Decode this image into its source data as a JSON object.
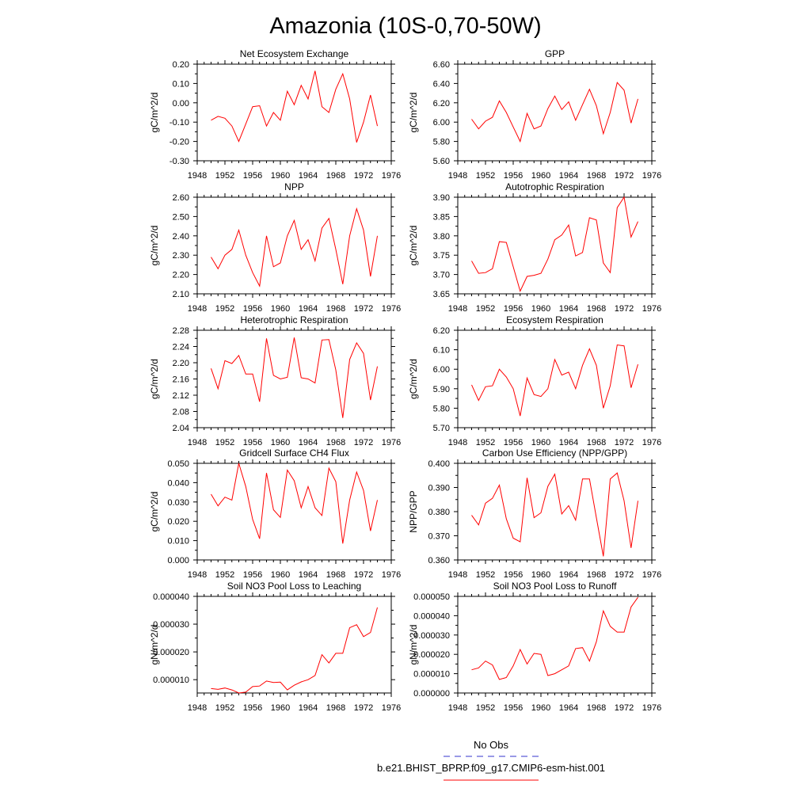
{
  "figure": {
    "title": "Amazonia (10S-0,70-50W)"
  },
  "legend": {
    "entries": [
      {
        "label": "No Obs",
        "color": "#3333cc",
        "dash": true
      },
      {
        "label": "b.e21.BHIST_BPRP.f09_g17.CMIP6-esm-hist.001",
        "color": "#ff0000",
        "dash": false
      }
    ]
  },
  "chart_data": [
    {
      "type": "line",
      "title": "Net Ecosystem Exchange",
      "ylabel": "gC/m^2/d",
      "xlabel": "",
      "xlim": [
        1948,
        1976
      ],
      "xticks": [
        "1948",
        "1952",
        "1956",
        "1960",
        "1964",
        "1968",
        "1972",
        "1976"
      ],
      "ylim": [
        -0.3,
        0.2
      ],
      "yticks": [
        "-0.30",
        "-0.20",
        "-0.10",
        "0.00",
        "0.10",
        "0.20"
      ],
      "x": [
        1950,
        1951,
        1952,
        1953,
        1954,
        1955,
        1956,
        1957,
        1958,
        1959,
        1960,
        1961,
        1962,
        1963,
        1964,
        1965,
        1966,
        1967,
        1968,
        1969,
        1970,
        1971,
        1972,
        1973,
        1974
      ],
      "series": [
        {
          "color": "#ff0000",
          "values": [
            -0.09,
            -0.07,
            -0.08,
            -0.12,
            -0.2,
            -0.11,
            -0.02,
            -0.015,
            -0.12,
            -0.05,
            -0.09,
            0.06,
            -0.01,
            0.09,
            0.02,
            0.165,
            -0.02,
            -0.05,
            0.07,
            0.15,
            0.02,
            -0.205,
            -0.1,
            0.04,
            -0.12
          ]
        }
      ]
    },
    {
      "type": "line",
      "title": "GPP",
      "ylabel": "gC/m^2/d",
      "xlabel": "",
      "xlim": [
        1948,
        1976
      ],
      "xticks": [
        "1948",
        "1952",
        "1956",
        "1960",
        "1964",
        "1968",
        "1972",
        "1976"
      ],
      "ylim": [
        5.6,
        6.6
      ],
      "yticks": [
        "5.60",
        "5.80",
        "6.00",
        "6.20",
        "6.40",
        "6.60"
      ],
      "x": [
        1950,
        1951,
        1952,
        1953,
        1954,
        1955,
        1956,
        1957,
        1958,
        1959,
        1960,
        1961,
        1962,
        1963,
        1964,
        1965,
        1966,
        1967,
        1968,
        1969,
        1970,
        1971,
        1972,
        1973,
        1974
      ],
      "series": [
        {
          "color": "#ff0000",
          "values": [
            6.03,
            5.93,
            6.01,
            6.05,
            6.22,
            6.1,
            5.95,
            5.8,
            6.09,
            5.93,
            5.96,
            6.14,
            6.27,
            6.13,
            6.21,
            6.02,
            6.18,
            6.34,
            6.17,
            5.88,
            6.1,
            6.41,
            6.33,
            5.99,
            6.24
          ]
        }
      ]
    },
    {
      "type": "line",
      "title": "NPP",
      "ylabel": "gC/m^2/d",
      "xlabel": "",
      "xlim": [
        1948,
        1976
      ],
      "xticks": [
        "1948",
        "1952",
        "1956",
        "1960",
        "1964",
        "1968",
        "1972",
        "1976"
      ],
      "ylim": [
        2.1,
        2.6
      ],
      "yticks": [
        "2.10",
        "2.20",
        "2.30",
        "2.40",
        "2.50",
        "2.60"
      ],
      "x": [
        1950,
        1951,
        1952,
        1953,
        1954,
        1955,
        1956,
        1957,
        1958,
        1959,
        1960,
        1961,
        1962,
        1963,
        1964,
        1965,
        1966,
        1967,
        1968,
        1969,
        1970,
        1971,
        1972,
        1973,
        1974
      ],
      "series": [
        {
          "color": "#ff0000",
          "values": [
            2.29,
            2.23,
            2.3,
            2.33,
            2.43,
            2.3,
            2.21,
            2.14,
            2.4,
            2.24,
            2.26,
            2.4,
            2.48,
            2.33,
            2.38,
            2.27,
            2.44,
            2.49,
            2.33,
            2.15,
            2.4,
            2.54,
            2.43,
            2.19,
            2.4
          ]
        }
      ]
    },
    {
      "type": "line",
      "title": "Autotrophic Respiration",
      "ylabel": "gC/m^2/d",
      "xlabel": "",
      "xlim": [
        1948,
        1976
      ],
      "xticks": [
        "1948",
        "1952",
        "1956",
        "1960",
        "1964",
        "1968",
        "1972",
        "1976"
      ],
      "ylim": [
        3.65,
        3.9
      ],
      "yticks": [
        "3.65",
        "3.70",
        "3.75",
        "3.80",
        "3.85",
        "3.90"
      ],
      "x": [
        1950,
        1951,
        1952,
        1953,
        1954,
        1955,
        1956,
        1957,
        1958,
        1959,
        1960,
        1961,
        1962,
        1963,
        1964,
        1965,
        1966,
        1967,
        1968,
        1969,
        1970,
        1971,
        1972,
        1973,
        1974
      ],
      "series": [
        {
          "color": "#ff0000",
          "values": [
            3.735,
            3.703,
            3.705,
            3.715,
            3.785,
            3.783,
            3.72,
            3.657,
            3.695,
            3.698,
            3.703,
            3.74,
            3.79,
            3.802,
            3.828,
            3.748,
            3.757,
            3.847,
            3.841,
            3.73,
            3.705,
            3.873,
            3.9,
            3.797,
            3.837
          ]
        }
      ]
    },
    {
      "type": "line",
      "title": "Heterotrophic Respiration",
      "ylabel": "gC/m^2/d",
      "xlabel": "",
      "xlim": [
        1948,
        1976
      ],
      "xticks": [
        "1948",
        "1952",
        "1956",
        "1960",
        "1964",
        "1968",
        "1972",
        "1976"
      ],
      "ylim": [
        2.04,
        2.28
      ],
      "yticks": [
        "2.04",
        "2.08",
        "2.12",
        "2.16",
        "2.20",
        "2.24",
        "2.28"
      ],
      "x": [
        1950,
        1951,
        1952,
        1953,
        1954,
        1955,
        1956,
        1957,
        1958,
        1959,
        1960,
        1961,
        1962,
        1963,
        1964,
        1965,
        1966,
        1967,
        1968,
        1969,
        1970,
        1971,
        1972,
        1973,
        1974
      ],
      "series": [
        {
          "color": "#ff0000",
          "values": [
            2.186,
            2.136,
            2.205,
            2.198,
            2.218,
            2.172,
            2.172,
            2.104,
            2.26,
            2.169,
            2.16,
            2.164,
            2.262,
            2.163,
            2.16,
            2.15,
            2.256,
            2.257,
            2.182,
            2.064,
            2.208,
            2.249,
            2.223,
            2.108,
            2.191
          ]
        }
      ]
    },
    {
      "type": "line",
      "title": "Ecosystem Respiration",
      "ylabel": "gC/m^2/d",
      "xlabel": "",
      "xlim": [
        1948,
        1976
      ],
      "xticks": [
        "1948",
        "1952",
        "1956",
        "1960",
        "1964",
        "1968",
        "1972",
        "1976"
      ],
      "ylim": [
        5.7,
        6.2
      ],
      "yticks": [
        "5.70",
        "5.80",
        "5.90",
        "6.00",
        "6.10",
        "6.20"
      ],
      "x": [
        1950,
        1951,
        1952,
        1953,
        1954,
        1955,
        1956,
        1957,
        1958,
        1959,
        1960,
        1961,
        1962,
        1963,
        1964,
        1965,
        1966,
        1967,
        1968,
        1969,
        1970,
        1971,
        1972,
        1973,
        1974
      ],
      "series": [
        {
          "color": "#ff0000",
          "values": [
            5.92,
            5.84,
            5.91,
            5.915,
            6.0,
            5.96,
            5.9,
            5.76,
            5.955,
            5.87,
            5.86,
            5.9,
            6.05,
            5.97,
            5.985,
            5.9,
            6.02,
            6.105,
            6.02,
            5.8,
            5.915,
            6.125,
            6.12,
            5.905,
            6.025
          ]
        }
      ]
    },
    {
      "type": "line",
      "title": "Gridcell Surface CH4 Flux",
      "ylabel": "gC/m^2/d",
      "xlabel": "",
      "xlim": [
        1948,
        1976
      ],
      "xticks": [
        "1948",
        "1952",
        "1956",
        "1960",
        "1964",
        "1968",
        "1972",
        "1976"
      ],
      "ylim": [
        0.0,
        0.05
      ],
      "yticks": [
        "0.000",
        "0.010",
        "0.020",
        "0.030",
        "0.040",
        "0.050"
      ],
      "x": [
        1950,
        1951,
        1952,
        1953,
        1954,
        1955,
        1956,
        1957,
        1958,
        1959,
        1960,
        1961,
        1962,
        1963,
        1964,
        1965,
        1966,
        1967,
        1968,
        1969,
        1970,
        1971,
        1972,
        1973,
        1974
      ],
      "series": [
        {
          "color": "#ff0000",
          "values": [
            0.034,
            0.028,
            0.0325,
            0.031,
            0.05,
            0.038,
            0.021,
            0.011,
            0.045,
            0.026,
            0.022,
            0.0465,
            0.041,
            0.027,
            0.038,
            0.027,
            0.023,
            0.0475,
            0.0405,
            0.0085,
            0.031,
            0.0455,
            0.036,
            0.015,
            0.031
          ]
        }
      ]
    },
    {
      "type": "line",
      "title": "Carbon Use Efficiency (NPP/GPP)",
      "ylabel": "NPP/GPP",
      "xlabel": "",
      "xlim": [
        1948,
        1976
      ],
      "xticks": [
        "1948",
        "1952",
        "1956",
        "1960",
        "1964",
        "1968",
        "1972",
        "1976"
      ],
      "ylim": [
        0.36,
        0.4
      ],
      "yticks": [
        "0.360",
        "0.370",
        "0.380",
        "0.390",
        "0.400"
      ],
      "x": [
        1950,
        1951,
        1952,
        1953,
        1954,
        1955,
        1956,
        1957,
        1958,
        1959,
        1960,
        1961,
        1962,
        1963,
        1964,
        1965,
        1966,
        1967,
        1968,
        1969,
        1970,
        1971,
        1972,
        1973,
        1974
      ],
      "series": [
        {
          "color": "#ff0000",
          "values": [
            0.3785,
            0.3745,
            0.3835,
            0.3855,
            0.391,
            0.377,
            0.369,
            0.3675,
            0.394,
            0.3775,
            0.3795,
            0.3905,
            0.3955,
            0.379,
            0.3825,
            0.3765,
            0.3935,
            0.3935,
            0.3775,
            0.3615,
            0.3935,
            0.396,
            0.3845,
            0.365,
            0.3845
          ]
        }
      ]
    },
    {
      "type": "line",
      "title": "Soil NO3 Pool Loss to Leaching",
      "ylabel": "gN/m^2/d",
      "xlabel": "",
      "xlim": [
        1948,
        1976
      ],
      "xticks": [
        "1948",
        "1952",
        "1956",
        "1960",
        "1964",
        "1968",
        "1972",
        "1976"
      ],
      "ylim": [
        5.2e-06,
        4e-05
      ],
      "yticks": [
        "0.000010",
        "0.000020",
        "0.000030",
        "0.000040"
      ],
      "ytickvals": [
        1e-05,
        2e-05,
        3e-05,
        4e-05
      ],
      "x": [
        1950,
        1951,
        1952,
        1953,
        1954,
        1955,
        1956,
        1957,
        1958,
        1959,
        1960,
        1961,
        1962,
        1963,
        1964,
        1965,
        1966,
        1967,
        1968,
        1969,
        1970,
        1971,
        1972,
        1973,
        1974
      ],
      "series": [
        {
          "color": "#ff0000",
          "values": [
            6.8e-06,
            6.5e-06,
            7e-06,
            6.3e-06,
            5.2e-06,
            5.5e-06,
            7.5e-06,
            7.7e-06,
            9.5e-06,
            9e-06,
            9.1e-06,
            6.3e-06,
            8e-06,
            9.2e-06,
            1e-05,
            1.15e-05,
            1.9e-05,
            1.6e-05,
            1.95e-05,
            1.95e-05,
            2.87e-05,
            2.98e-05,
            2.55e-05,
            2.7e-05,
            3.6e-05
          ]
        }
      ]
    },
    {
      "type": "line",
      "title": "Soil NO3 Pool Loss to Runoff",
      "ylabel": "gN/m^2/d",
      "xlabel": "",
      "xlim": [
        1948,
        1976
      ],
      "xticks": [
        "1948",
        "1952",
        "1956",
        "1960",
        "1964",
        "1968",
        "1972",
        "1976"
      ],
      "ylim": [
        0.0,
        5e-05
      ],
      "yticks": [
        "0.000000",
        "0.000010",
        "0.000020",
        "0.000030",
        "0.000040",
        "0.000050"
      ],
      "x": [
        1950,
        1951,
        1952,
        1953,
        1954,
        1955,
        1956,
        1957,
        1958,
        1959,
        1960,
        1961,
        1962,
        1963,
        1964,
        1965,
        1966,
        1967,
        1968,
        1969,
        1970,
        1971,
        1972,
        1973,
        1974
      ],
      "series": [
        {
          "color": "#ff0000",
          "values": [
            1.2e-05,
            1.3e-05,
            1.65e-05,
            1.45e-05,
            7e-06,
            8e-06,
            1.4e-05,
            2.25e-05,
            1.5e-05,
            2.05e-05,
            2e-05,
            9e-06,
            1e-05,
            1.2e-05,
            1.4e-05,
            2.3e-05,
            2.35e-05,
            1.65e-05,
            2.65e-05,
            4.25e-05,
            3.45e-05,
            3.15e-05,
            3.15e-05,
            4.45e-05,
            4.95e-05
          ]
        }
      ]
    }
  ]
}
